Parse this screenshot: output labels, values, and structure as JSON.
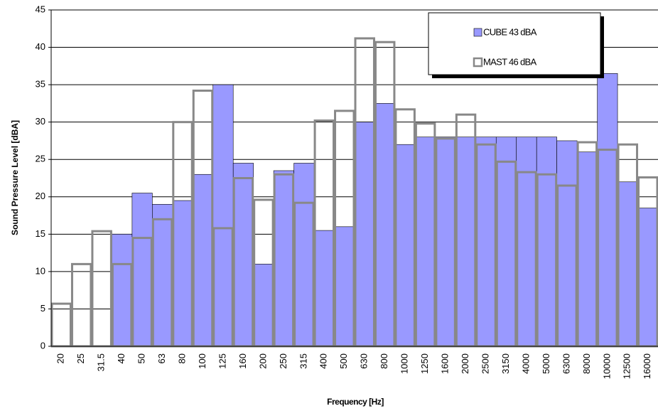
{
  "chart_data": {
    "type": "bar",
    "x_label": "Frequency [Hz]",
    "y_label": "Sound Pressure Level [dBA]",
    "categories": [
      "20",
      "25",
      "31.5",
      "40",
      "50",
      "63",
      "80",
      "100",
      "125",
      "160",
      "200",
      "250",
      "315",
      "400",
      "500",
      "630",
      "800",
      "1000",
      "1250",
      "1600",
      "2000",
      "2500",
      "3150",
      "4000",
      "5000",
      "6300",
      "8000",
      "10000",
      "12500",
      "16000"
    ],
    "series": [
      {
        "name": "CUBE 43 dBA",
        "color": "#9999ff",
        "style": "filled",
        "values": [
          0,
          0,
          0,
          15,
          20.5,
          19,
          19.5,
          23,
          35,
          24.5,
          11,
          23.5,
          24.5,
          15.5,
          16,
          30,
          32.5,
          27,
          28,
          28,
          28,
          28,
          28,
          28,
          28,
          27.5,
          26,
          36.5,
          22,
          18.5
        ]
      },
      {
        "name": "MAST 46 dBA",
        "color": "#888888",
        "style": "outline",
        "values": [
          5.7,
          11,
          15.4,
          11,
          14.5,
          17,
          30,
          34.2,
          15.8,
          22.5,
          19.6,
          23,
          19.2,
          30.2,
          31.5,
          41.2,
          40.7,
          31.7,
          29.8,
          27.8,
          31,
          27,
          24.7,
          23.3,
          23,
          21.5,
          27.3,
          26.3,
          27,
          22.6
        ]
      }
    ],
    "ylim": [
      0,
      45
    ],
    "yticks": [
      0,
      5,
      10,
      15,
      20,
      25,
      30,
      35,
      40,
      45
    ],
    "grid": true,
    "legend": "top-right"
  }
}
